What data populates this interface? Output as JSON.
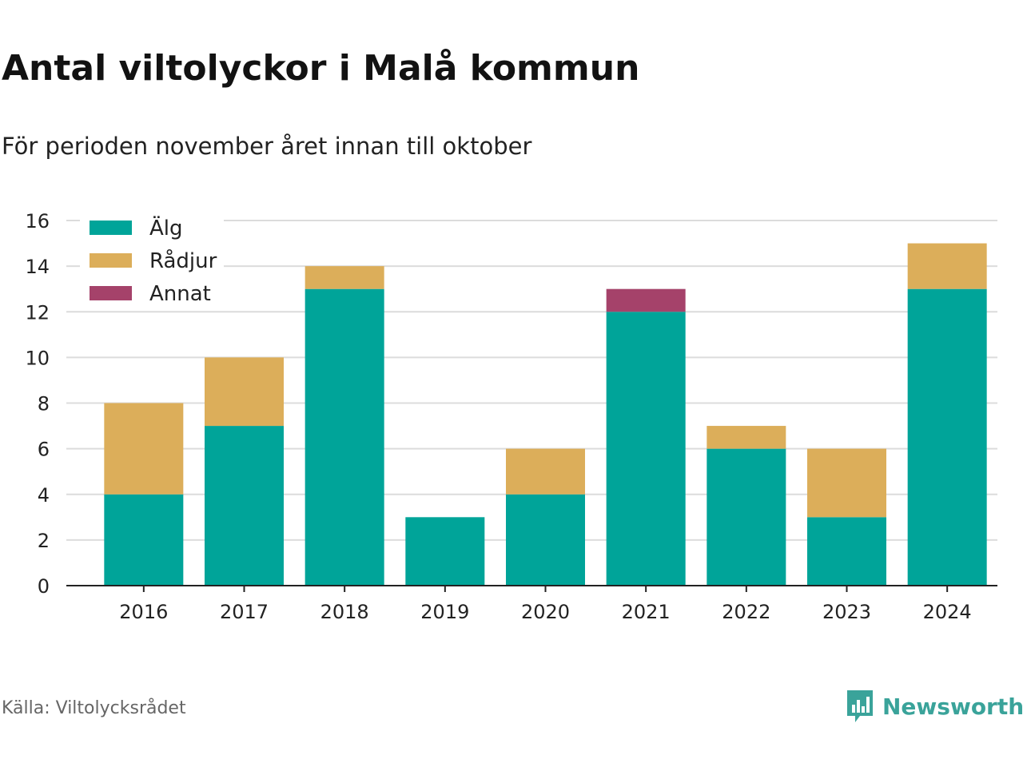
{
  "title": "Antal viltolyckor i Malå kommun",
  "subtitle": "För perioden november året innan till oktober",
  "source": "Källa: Viltolycksrådet",
  "brand": {
    "name": "Newsworthy",
    "icon": "newsworthy-logo-icon"
  },
  "colors": {
    "alg": "#00a499",
    "radjur": "#dcae5a",
    "annat": "#a5426a",
    "grid": "#dcdcdc",
    "axis": "#222222"
  },
  "chart_data": {
    "type": "bar",
    "stacked": true,
    "categories": [
      "2016",
      "2017",
      "2018",
      "2019",
      "2020",
      "2021",
      "2022",
      "2023",
      "2024"
    ],
    "series": [
      {
        "name": "Älg",
        "color": "#00a499",
        "values": [
          4,
          7,
          13,
          3,
          4,
          12,
          6,
          3,
          13
        ]
      },
      {
        "name": "Rådjur",
        "color": "#dcae5a",
        "values": [
          4,
          3,
          1,
          0,
          2,
          0,
          1,
          3,
          2
        ]
      },
      {
        "name": "Annat",
        "color": "#a5426a",
        "values": [
          0,
          0,
          0,
          0,
          0,
          1,
          0,
          0,
          0
        ]
      }
    ],
    "yticks": [
      0,
      2,
      4,
      6,
      8,
      10,
      12,
      14,
      16
    ],
    "ylim": [
      0,
      16
    ],
    "grid": true,
    "legend": "top-left"
  }
}
